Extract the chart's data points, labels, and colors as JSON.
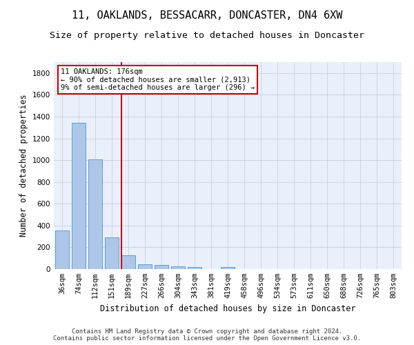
{
  "title": "11, OAKLANDS, BESSACARR, DONCASTER, DN4 6XW",
  "subtitle": "Size of property relative to detached houses in Doncaster",
  "xlabel": "Distribution of detached houses by size in Doncaster",
  "ylabel": "Number of detached properties",
  "bar_color": "#aec6e8",
  "bar_edge_color": "#5a9fd4",
  "background_color": "#eaf0fb",
  "grid_color": "#c8d0dc",
  "categories": [
    "36sqm",
    "74sqm",
    "112sqm",
    "151sqm",
    "189sqm",
    "227sqm",
    "266sqm",
    "304sqm",
    "343sqm",
    "381sqm",
    "419sqm",
    "458sqm",
    "496sqm",
    "534sqm",
    "573sqm",
    "611sqm",
    "650sqm",
    "688sqm",
    "726sqm",
    "765sqm",
    "803sqm"
  ],
  "values": [
    355,
    1345,
    1008,
    290,
    125,
    42,
    35,
    24,
    19,
    0,
    20,
    0,
    0,
    0,
    0,
    0,
    0,
    0,
    0,
    0,
    0
  ],
  "ylim": [
    0,
    1900
  ],
  "yticks": [
    0,
    200,
    400,
    600,
    800,
    1000,
    1200,
    1400,
    1600,
    1800
  ],
  "annotation_text": "11 OAKLANDS: 176sqm\n← 90% of detached houses are smaller (2,913)\n9% of semi-detached houses are larger (296) →",
  "annotation_box_color": "#ffffff",
  "annotation_box_edge_color": "#cc0000",
  "red_line_x": 3.57,
  "footer": "Contains HM Land Registry data © Crown copyright and database right 2024.\nContains public sector information licensed under the Open Government Licence v3.0.",
  "title_fontsize": 11,
  "subtitle_fontsize": 9.5,
  "axis_label_fontsize": 8.5,
  "tick_fontsize": 7.5,
  "annotation_fontsize": 7.5,
  "footer_fontsize": 6.5
}
